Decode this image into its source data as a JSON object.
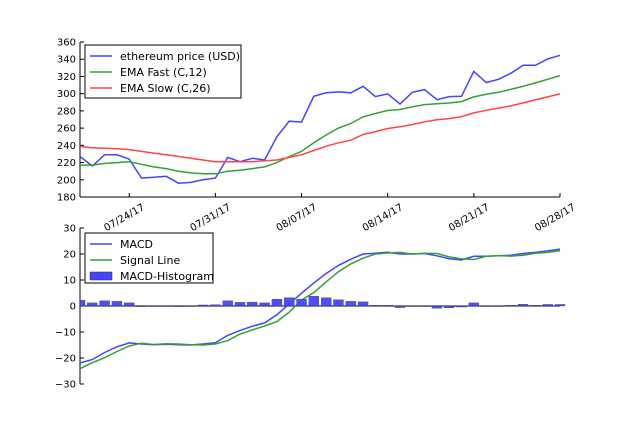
{
  "chart_data": [
    {
      "type": "line",
      "title": "",
      "xlabel": "",
      "ylabel": "",
      "ylim": [
        180,
        360
      ],
      "yticks": [
        180,
        200,
        220,
        240,
        260,
        280,
        300,
        320,
        340,
        360
      ],
      "xtick_labels": [
        "07/24/17",
        "07/31/17",
        "08/07/17",
        "08/14/17",
        "08/21/17",
        "08/28/17"
      ],
      "xtick_day_index": [
        4,
        11,
        18,
        25,
        32,
        39
      ],
      "x_start": "07/20/17",
      "x_end": "08/28/17",
      "legend_position": "top-left",
      "series": [
        {
          "name": "ethereum price (USD)",
          "color": "#4444ff",
          "values": [
            227,
            216,
            229,
            229,
            224,
            202,
            203,
            204,
            196,
            197,
            200,
            202,
            226,
            221,
            225,
            223,
            250,
            268,
            267,
            297,
            301,
            302,
            301,
            308.6,
            296.6,
            299.7,
            288,
            301.6,
            304.7,
            293,
            296.6,
            296.9,
            326,
            313,
            316.7,
            323.6,
            332.9,
            333,
            340.3,
            344.5
          ]
        },
        {
          "name": "EMA Fast (C,12)",
          "color": "#33a033",
          "values": [
            217,
            217,
            219,
            220,
            221,
            218,
            215,
            213,
            210,
            208,
            207,
            207,
            210,
            211,
            213,
            215,
            220,
            227,
            233,
            243,
            252,
            260,
            265.3,
            273,
            277,
            280.4,
            281.6,
            284.7,
            287.3,
            288.4,
            289.2,
            290.8,
            296.3,
            299.3,
            301.6,
            305,
            308.6,
            312.5,
            316.7,
            321
          ]
        },
        {
          "name": "EMA Slow (C,26)",
          "color": "#ff4444",
          "values": [
            239,
            237,
            236.5,
            236,
            235,
            233,
            231,
            229,
            227,
            225,
            223,
            221,
            221,
            221,
            221,
            222,
            223,
            226,
            229,
            234,
            239,
            243,
            246,
            252.6,
            256,
            259.6,
            261.5,
            264.2,
            267.3,
            269.6,
            271,
            273.4,
            277.7,
            280.7,
            283.2,
            285.8,
            289.3,
            292.8,
            296.3,
            299.7
          ]
        }
      ]
    },
    {
      "type": "line",
      "title": "",
      "xlabel": "",
      "ylabel": "",
      "ylim": [
        -30,
        30
      ],
      "yticks": [
        -30,
        -20,
        -10,
        0,
        10,
        20,
        30
      ],
      "legend_position": "top-left",
      "series": [
        {
          "name": "MACD",
          "color": "#4444ff",
          "kind": "line",
          "values": [
            -21.9,
            -20.6,
            -17.9,
            -15.7,
            -14.2,
            -14.6,
            -14.9,
            -14.7,
            -14.9,
            -15,
            -14.6,
            -14.1,
            -11.3,
            -9.4,
            -7.8,
            -6.5,
            -3.4,
            0.8,
            4.9,
            8.9,
            12.5,
            15.6,
            18,
            20,
            20.3,
            20.7,
            20,
            20,
            20.2,
            19.3,
            18.2,
            17.7,
            19.1,
            19.1,
            19.3,
            19.5,
            20.2,
            20.6,
            21.2,
            21.9
          ]
        },
        {
          "name": "Signal Line",
          "color": "#33a033",
          "kind": "line",
          "values": [
            -24.1,
            -21.8,
            -19.9,
            -17.5,
            -15.4,
            -14.3,
            -14.8,
            -14.5,
            -14.6,
            -14.9,
            -15,
            -14.6,
            -13.3,
            -10.8,
            -9.2,
            -7.7,
            -6,
            -2.4,
            2.3,
            5.1,
            9.3,
            13.2,
            16.2,
            18.4,
            20,
            20.4,
            20.6,
            20,
            20.3,
            20.2,
            18.9,
            18.1,
            17.9,
            19.1,
            19.4,
            19.2,
            19.5,
            20.3,
            20.6,
            21.3
          ]
        },
        {
          "name": "MACD-Histogram",
          "color": "#4444ff",
          "kind": "bar",
          "values": [
            2.2,
            1.2,
            2,
            1.8,
            1.2,
            -0.3,
            -0.1,
            -0.2,
            -0.3,
            -0.1,
            0.4,
            0.5,
            2,
            1.4,
            1.5,
            1.2,
            2.6,
            3.2,
            2.6,
            3.8,
            3.2,
            2.4,
            1.8,
            1.6,
            0.3,
            0.3,
            -0.6,
            0,
            -0.1,
            -0.9,
            -0.7,
            -0.4,
            1.2,
            0,
            -0.1,
            0.3,
            0.7,
            0.3,
            0.6,
            0.6
          ]
        }
      ]
    }
  ]
}
